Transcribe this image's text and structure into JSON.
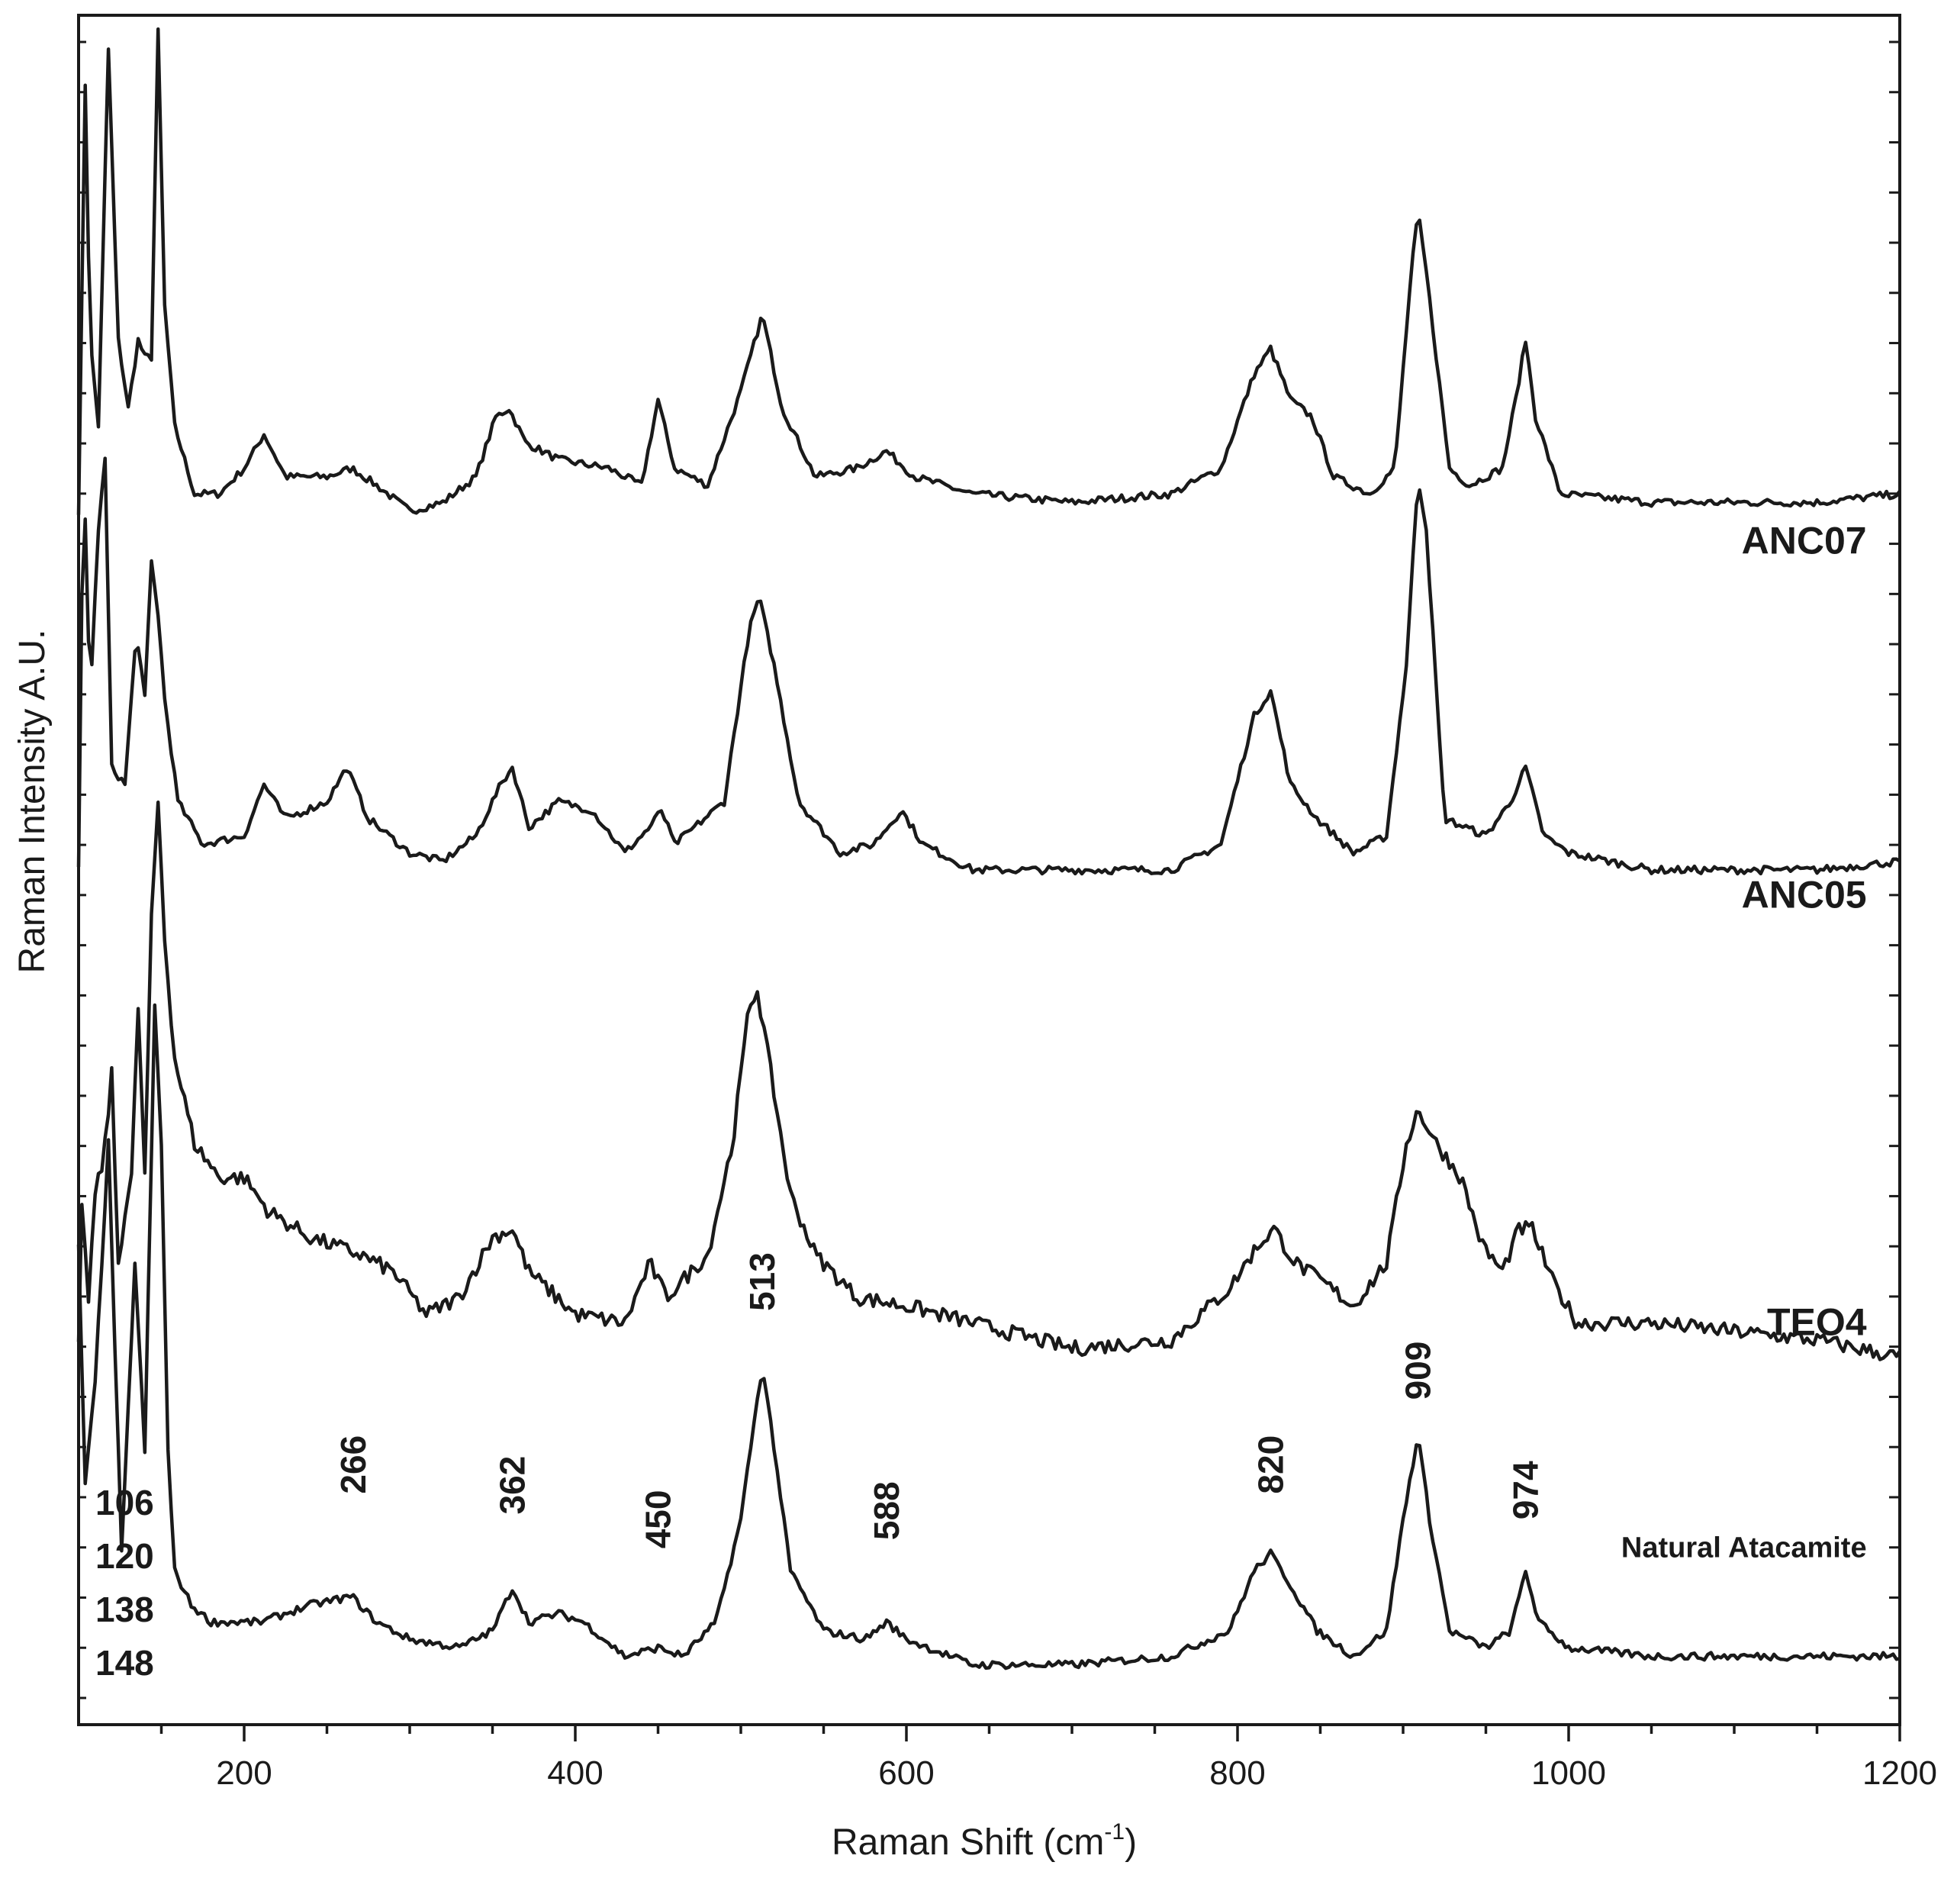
{
  "chart_data": {
    "type": "line",
    "xlabel": "Raman Shift (cm",
    "xlabel_superscript": "-1",
    "xlabel_close": ")",
    "ylabel": "Raman Intensity A.U.",
    "xlim": [
      100,
      1200
    ],
    "ylim": [
      0,
      100
    ],
    "x_ticks": [
      200,
      400,
      600,
      800,
      1000,
      1200
    ],
    "x_tick_labels": [
      "200",
      "400",
      "600",
      "800",
      "1000",
      "1200"
    ],
    "y_tick_labels_shown": false,
    "grid": false,
    "series": [
      {
        "name": "ANC07",
        "offset": 71,
        "points": [
          [
            100,
            0
          ],
          [
            104,
            25
          ],
          [
            107,
            10
          ],
          [
            112,
            5
          ],
          [
            118,
            27
          ],
          [
            124,
            10
          ],
          [
            130,
            6
          ],
          [
            136,
            10
          ],
          [
            140,
            9
          ],
          [
            144,
            9
          ],
          [
            148,
            28
          ],
          [
            152,
            12
          ],
          [
            158,
            5
          ],
          [
            170,
            1
          ],
          [
            185,
            1
          ],
          [
            200,
            2.5
          ],
          [
            212,
            4.5
          ],
          [
            225,
            2
          ],
          [
            250,
            2
          ],
          [
            265,
            2.5
          ],
          [
            280,
            1.5
          ],
          [
            300,
            0
          ],
          [
            320,
            0.5
          ],
          [
            340,
            2
          ],
          [
            352,
            5.5
          ],
          [
            360,
            6
          ],
          [
            370,
            4
          ],
          [
            390,
            3
          ],
          [
            420,
            2.5
          ],
          [
            440,
            1.5
          ],
          [
            450,
            6.5
          ],
          [
            460,
            2.5
          ],
          [
            480,
            1.5
          ],
          [
            500,
            7
          ],
          [
            513,
            11.5
          ],
          [
            525,
            6
          ],
          [
            545,
            2
          ],
          [
            570,
            2.5
          ],
          [
            588,
            3.5
          ],
          [
            605,
            2
          ],
          [
            640,
            1
          ],
          [
            700,
            0.5
          ],
          [
            760,
            1
          ],
          [
            790,
            2.5
          ],
          [
            810,
            8
          ],
          [
            820,
            9.5
          ],
          [
            832,
            6.5
          ],
          [
            845,
            5.5
          ],
          [
            858,
            2
          ],
          [
            880,
            1
          ],
          [
            895,
            2.5
          ],
          [
            905,
            14
          ],
          [
            909,
            17.5
          ],
          [
            914,
            14
          ],
          [
            928,
            2.5
          ],
          [
            940,
            1.5
          ],
          [
            960,
            2.5
          ],
          [
            968,
            6.5
          ],
          [
            974,
            10
          ],
          [
            980,
            5.5
          ],
          [
            995,
            1
          ],
          [
            1050,
            0.5
          ],
          [
            1100,
            0.5
          ],
          [
            1150,
            0.5
          ],
          [
            1200,
            1
          ]
        ]
      },
      {
        "name": "ANC05",
        "offset": 50,
        "points": [
          [
            100,
            0
          ],
          [
            103,
            24
          ],
          [
            107,
            10
          ],
          [
            112,
            20
          ],
          [
            116,
            24
          ],
          [
            120,
            6
          ],
          [
            128,
            5
          ],
          [
            135,
            14
          ],
          [
            140,
            10
          ],
          [
            144,
            18
          ],
          [
            148,
            15
          ],
          [
            152,
            10
          ],
          [
            160,
            4
          ],
          [
            175,
            1.5
          ],
          [
            200,
            2
          ],
          [
            212,
            5
          ],
          [
            225,
            3
          ],
          [
            250,
            4
          ],
          [
            262,
            6
          ],
          [
            275,
            3
          ],
          [
            300,
            1
          ],
          [
            320,
            0.5
          ],
          [
            340,
            2
          ],
          [
            355,
            5
          ],
          [
            362,
            6
          ],
          [
            372,
            2.5
          ],
          [
            390,
            4
          ],
          [
            410,
            3.5
          ],
          [
            430,
            1
          ],
          [
            445,
            2.5
          ],
          [
            452,
            3.5
          ],
          [
            460,
            1.5
          ],
          [
            490,
            4
          ],
          [
            505,
            14
          ],
          [
            511,
            16
          ],
          [
            520,
            12
          ],
          [
            535,
            4
          ],
          [
            560,
            1
          ],
          [
            580,
            1.5
          ],
          [
            597,
            3.5
          ],
          [
            610,
            1.5
          ],
          [
            640,
            0
          ],
          [
            700,
            0
          ],
          [
            760,
            0
          ],
          [
            790,
            1.5
          ],
          [
            810,
            9
          ],
          [
            820,
            10.5
          ],
          [
            832,
            5
          ],
          [
            848,
            3
          ],
          [
            870,
            1
          ],
          [
            890,
            2
          ],
          [
            902,
            12
          ],
          [
            909,
            23
          ],
          [
            914,
            20
          ],
          [
            925,
            3
          ],
          [
            950,
            2
          ],
          [
            965,
            4
          ],
          [
            974,
            6
          ],
          [
            985,
            2
          ],
          [
            1000,
            1
          ],
          [
            1050,
            0
          ],
          [
            1100,
            0
          ],
          [
            1150,
            0
          ],
          [
            1200,
            0.5
          ]
        ]
      },
      {
        "name": "TEO4",
        "offset": 22,
        "points": [
          [
            100,
            0
          ],
          [
            102,
            8
          ],
          [
            106,
            3
          ],
          [
            110,
            9
          ],
          [
            115,
            11
          ],
          [
            120,
            16
          ],
          [
            124,
            5
          ],
          [
            128,
            8
          ],
          [
            132,
            10
          ],
          [
            136,
            20
          ],
          [
            140,
            10
          ],
          [
            144,
            25
          ],
          [
            148,
            32
          ],
          [
            152,
            24
          ],
          [
            158,
            17
          ],
          [
            170,
            12
          ],
          [
            185,
            10
          ],
          [
            200,
            10
          ],
          [
            215,
            8
          ],
          [
            240,
            6.5
          ],
          [
            270,
            5.5
          ],
          [
            290,
            4.5
          ],
          [
            310,
            2
          ],
          [
            330,
            3
          ],
          [
            350,
            6.5
          ],
          [
            362,
            7
          ],
          [
            372,
            4.5
          ],
          [
            400,
            2
          ],
          [
            430,
            1.5
          ],
          [
            445,
            5
          ],
          [
            455,
            3
          ],
          [
            480,
            5.5
          ],
          [
            495,
            12
          ],
          [
            505,
            20
          ],
          [
            510,
            21
          ],
          [
            520,
            15
          ],
          [
            530,
            9
          ],
          [
            545,
            5.5
          ],
          [
            570,
            3
          ],
          [
            600,
            2.5
          ],
          [
            640,
            1.5
          ],
          [
            700,
            0
          ],
          [
            760,
            0.5
          ],
          [
            795,
            3.5
          ],
          [
            812,
            6
          ],
          [
            822,
            7
          ],
          [
            835,
            5
          ],
          [
            850,
            4
          ],
          [
            870,
            2.5
          ],
          [
            890,
            5
          ],
          [
            902,
            12
          ],
          [
            909,
            14
          ],
          [
            920,
            12
          ],
          [
            935,
            10
          ],
          [
            948,
            6
          ],
          [
            960,
            4.5
          ],
          [
            970,
            7
          ],
          [
            978,
            7
          ],
          [
            990,
            4
          ],
          [
            1005,
            1.5
          ],
          [
            1050,
            1.5
          ],
          [
            1100,
            1
          ],
          [
            1150,
            0.5
          ],
          [
            1200,
            -0.5
          ]
        ]
      },
      {
        "name": "Natural Atacamite",
        "offset": 4,
        "points": [
          [
            100,
            24
          ],
          [
            104,
            10
          ],
          [
            110,
            16
          ],
          [
            118,
            30
          ],
          [
            126,
            6
          ],
          [
            134,
            23
          ],
          [
            140,
            12
          ],
          [
            146,
            38
          ],
          [
            150,
            30
          ],
          [
            154,
            12
          ],
          [
            158,
            5
          ],
          [
            168,
            3
          ],
          [
            180,
            2
          ],
          [
            210,
            2
          ],
          [
            240,
            3
          ],
          [
            265,
            3.5
          ],
          [
            280,
            2
          ],
          [
            300,
            1
          ],
          [
            330,
            0.5
          ],
          [
            350,
            1.5
          ],
          [
            362,
            4
          ],
          [
            372,
            2
          ],
          [
            390,
            2.5
          ],
          [
            405,
            2
          ],
          [
            430,
            0
          ],
          [
            450,
            0.5
          ],
          [
            465,
            0
          ],
          [
            485,
            2
          ],
          [
            500,
            8
          ],
          [
            507,
            13
          ],
          [
            513,
            17
          ],
          [
            519,
            13
          ],
          [
            530,
            5
          ],
          [
            550,
            1.5
          ],
          [
            575,
            1
          ],
          [
            588,
            2
          ],
          [
            600,
            1
          ],
          [
            640,
            -0.5
          ],
          [
            700,
            -0.5
          ],
          [
            760,
            0
          ],
          [
            795,
            1.5
          ],
          [
            810,
            5
          ],
          [
            820,
            6
          ],
          [
            830,
            4.5
          ],
          [
            848,
            1.5
          ],
          [
            870,
            0
          ],
          [
            890,
            1.5
          ],
          [
            900,
            8
          ],
          [
            909,
            13
          ],
          [
            916,
            8
          ],
          [
            928,
            1.5
          ],
          [
            950,
            0.5
          ],
          [
            965,
            1.5
          ],
          [
            974,
            5
          ],
          [
            982,
            2
          ],
          [
            1000,
            0.5
          ],
          [
            1050,
            0
          ],
          [
            1100,
            0
          ],
          [
            1150,
            0
          ],
          [
            1200,
            0
          ]
        ]
      }
    ],
    "series_labels": [
      "ANC07",
      "ANC05",
      "TEO4",
      "Natural Atacamite"
    ],
    "peak_annotations": [
      {
        "label": "266",
        "x": 266
      },
      {
        "label": "362",
        "x": 362
      },
      {
        "label": "450",
        "x": 450
      },
      {
        "label": "513",
        "x": 513
      },
      {
        "label": "588",
        "x": 588
      },
      {
        "label": "820",
        "x": 820
      },
      {
        "label": "909",
        "x": 909
      },
      {
        "label": "974",
        "x": 974
      }
    ],
    "low_peak_labels": [
      "106",
      "120",
      "138",
      "148"
    ]
  }
}
